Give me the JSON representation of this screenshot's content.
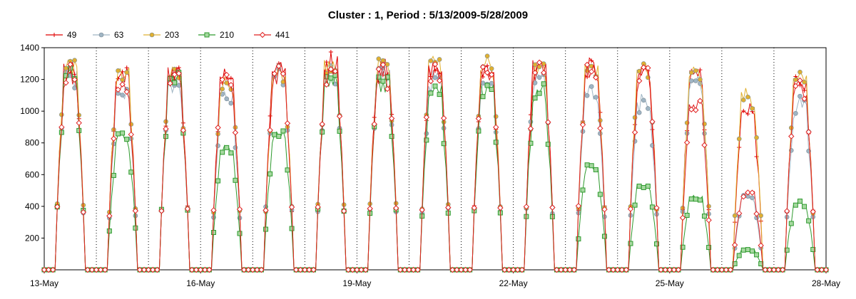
{
  "chart_data": {
    "type": "line",
    "title": "Cluster : 1, Period : 5/13/2009-5/28/2009",
    "xlabel": "",
    "ylabel": "",
    "xlim": [
      "2009-05-13",
      "2009-05-28"
    ],
    "ylim": [
      0,
      1400
    ],
    "y_ticks": [
      200,
      400,
      600,
      800,
      1000,
      1200,
      1400
    ],
    "x_ticks": [
      {
        "date": "2009-05-13",
        "label": "13-May"
      },
      {
        "date": "2009-05-16",
        "label": "16-May"
      },
      {
        "date": "2009-05-19",
        "label": "19-May"
      },
      {
        "date": "2009-05-22",
        "label": "22-May"
      },
      {
        "date": "2009-05-25",
        "label": "25-May"
      },
      {
        "date": "2009-05-28",
        "label": "28-May"
      }
    ],
    "grid": "vertical dotted daily lines",
    "legend_position": "top-left",
    "days": [
      "2009-05-13",
      "2009-05-14",
      "2009-05-15",
      "2009-05-16",
      "2009-05-17",
      "2009-05-18",
      "2009-05-19",
      "2009-05-20",
      "2009-05-21",
      "2009-05-22",
      "2009-05-23",
      "2009-05-24",
      "2009-05-25",
      "2009-05-26",
      "2009-05-27",
      "2009-05-28"
    ],
    "series": [
      {
        "name": "49",
        "color": "#e00000",
        "marker": "plus",
        "daily_peak": [
          1340,
          1300,
          1320,
          1300,
          1330,
          1380,
          1360,
          1340,
          1330,
          1350,
          1360,
          1320,
          1300,
          1080,
          1280,
          0
        ]
      },
      {
        "name": "63",
        "color": "#9fb5c4",
        "marker": "circle",
        "daily_peak": [
          1300,
          1180,
          1250,
          1150,
          1300,
          1320,
          1300,
          1280,
          1260,
          1280,
          1200,
          1150,
          1250,
          480,
          1100,
          0
        ]
      },
      {
        "name": "203",
        "color": "#e0b030",
        "marker": "circle",
        "daily_peak": [
          1370,
          1310,
          1300,
          1240,
          1310,
          1360,
          1370,
          1370,
          1360,
          1340,
          1340,
          1340,
          1320,
          1180,
          1260,
          0
        ]
      },
      {
        "name": "210",
        "color": "#2e9a2e",
        "marker": "square",
        "daily_peak": [
          1300,
          880,
          1270,
          800,
          900,
          1280,
          1260,
          1200,
          1220,
          1200,
          690,
          560,
          480,
          130,
          440,
          0
        ]
      },
      {
        "name": "441",
        "color": "#e02020",
        "marker": "diamond",
        "daily_peak": [
          1300,
          1220,
          1310,
          1260,
          1300,
          1340,
          1320,
          1330,
          1320,
          1330,
          1320,
          1300,
          1100,
          520,
          1220,
          0
        ]
      }
    ]
  }
}
